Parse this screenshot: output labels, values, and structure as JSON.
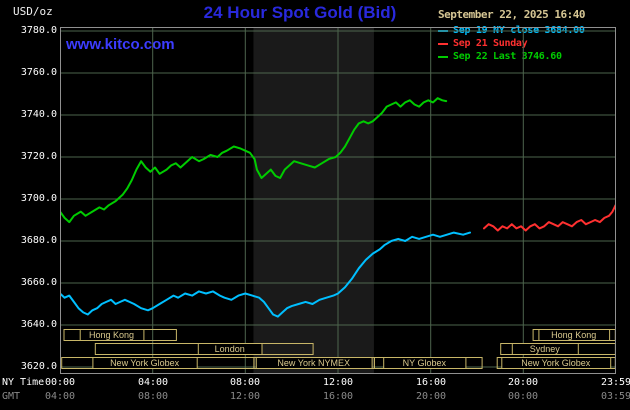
{
  "header": {
    "unit_label": "USD/oz",
    "title": "24 Hour Spot Gold (Bid)",
    "datetime": "September 22, 2025 16:40",
    "watermark": "www.kitco.com"
  },
  "legend": [
    {
      "label": "Sep 19 NY close 3684.00",
      "color": "#00bfff"
    },
    {
      "label": "Sep 21 Sunday",
      "color": "#ff3030"
    },
    {
      "label": "Sep 22 Last 3746.60",
      "color": "#00cc00"
    }
  ],
  "axes": {
    "ny_time_label": "NY Time",
    "gmt_label": "GMT",
    "ny_ticks": [
      "00:00",
      "04:00",
      "08:00",
      "12:00",
      "16:00",
      "20:00",
      "23:59"
    ],
    "gmt_ticks": [
      "04:00",
      "08:00",
      "12:00",
      "16:00",
      "20:00",
      "00:00",
      "03:59"
    ]
  },
  "style": {
    "background": "#000000",
    "grid_color": "#4d654d",
    "border_color": "#909090"
  },
  "sessions": {
    "color": "#c8b668",
    "text_color": "#d9c98e",
    "rows": [
      [
        {
          "label": "Hong Kong",
          "start": 0.15,
          "end": 5.0,
          "label_start": 0.85,
          "label_end": 3.6
        },
        {
          "label": "Hong Kong",
          "start": 20.4,
          "end": 23.95,
          "label_start": 20.65,
          "label_end": 23.7
        }
      ],
      [
        {
          "label": "London",
          "start": 1.5,
          "end": 10.9,
          "label_start": 5.95,
          "label_end": 8.7
        },
        {
          "label": "Sydney",
          "start": 19.0,
          "end": 23.95,
          "label_start": 19.5,
          "label_end": 22.35
        }
      ],
      [
        {
          "label": "New York Globex",
          "start": 0.05,
          "end": 8.35,
          "label_start": 1.4,
          "label_end": 5.9
        },
        {
          "label": "New York NYMEX",
          "start": 8.35,
          "end": 13.55,
          "label_start": 8.45,
          "label_end": 13.45
        },
        {
          "label": "NY Globex",
          "start": 13.55,
          "end": 18.2,
          "label_start": 13.95,
          "label_end": 17.5
        },
        {
          "label": "New York Globex",
          "start": 18.85,
          "end": 23.95,
          "label_start": 19.05,
          "label_end": 23.75
        }
      ]
    ]
  },
  "chart_data": {
    "type": "line",
    "title": "24 Hour Spot Gold (Bid)",
    "ylabel": "USD/oz",
    "ylim": [
      3620,
      3780
    ],
    "yticks": [
      3780,
      3760,
      3740,
      3720,
      3700,
      3680,
      3660,
      3640,
      3620
    ],
    "xlim": [
      0,
      24
    ],
    "x_unit": "hours NY time",
    "xticks": [
      0,
      4,
      8,
      12,
      16,
      20,
      24
    ],
    "xgrid": [
      4,
      8,
      12,
      16,
      20
    ],
    "shaded_region": {
      "start": 8.35,
      "end": 13.55,
      "color": "#1a1a1a"
    },
    "series": [
      {
        "name": "Sep 19 NY close 3684.00",
        "color": "#00bfff",
        "points": [
          [
            0,
            3655
          ],
          [
            0.2,
            3653
          ],
          [
            0.4,
            3654
          ],
          [
            0.6,
            3651
          ],
          [
            0.8,
            3648
          ],
          [
            1.0,
            3646
          ],
          [
            1.2,
            3645
          ],
          [
            1.4,
            3647
          ],
          [
            1.6,
            3648
          ],
          [
            1.8,
            3650
          ],
          [
            2.0,
            3651
          ],
          [
            2.2,
            3652
          ],
          [
            2.4,
            3650
          ],
          [
            2.6,
            3651
          ],
          [
            2.8,
            3652
          ],
          [
            3.0,
            3651
          ],
          [
            3.2,
            3650
          ],
          [
            3.5,
            3648
          ],
          [
            3.8,
            3647
          ],
          [
            4.0,
            3648
          ],
          [
            4.3,
            3650
          ],
          [
            4.6,
            3652
          ],
          [
            4.9,
            3654
          ],
          [
            5.1,
            3653
          ],
          [
            5.4,
            3655
          ],
          [
            5.7,
            3654
          ],
          [
            6.0,
            3656
          ],
          [
            6.3,
            3655
          ],
          [
            6.6,
            3656
          ],
          [
            6.9,
            3654
          ],
          [
            7.1,
            3653
          ],
          [
            7.4,
            3652
          ],
          [
            7.7,
            3654
          ],
          [
            8.0,
            3655
          ],
          [
            8.3,
            3654
          ],
          [
            8.6,
            3653
          ],
          [
            8.8,
            3651
          ],
          [
            9.0,
            3648
          ],
          [
            9.2,
            3645
          ],
          [
            9.4,
            3644
          ],
          [
            9.6,
            3646
          ],
          [
            9.8,
            3648
          ],
          [
            10.0,
            3649
          ],
          [
            10.3,
            3650
          ],
          [
            10.6,
            3651
          ],
          [
            10.9,
            3650
          ],
          [
            11.2,
            3652
          ],
          [
            11.5,
            3653
          ],
          [
            11.8,
            3654
          ],
          [
            12.0,
            3655
          ],
          [
            12.3,
            3658
          ],
          [
            12.6,
            3662
          ],
          [
            12.9,
            3667
          ],
          [
            13.2,
            3671
          ],
          [
            13.5,
            3674
          ],
          [
            13.8,
            3676
          ],
          [
            14.0,
            3678
          ],
          [
            14.3,
            3680
          ],
          [
            14.6,
            3681
          ],
          [
            14.9,
            3680
          ],
          [
            15.2,
            3682
          ],
          [
            15.5,
            3681
          ],
          [
            15.8,
            3682
          ],
          [
            16.1,
            3683
          ],
          [
            16.4,
            3682
          ],
          [
            16.7,
            3683
          ],
          [
            17.0,
            3684
          ],
          [
            17.4,
            3683
          ],
          [
            17.7,
            3684
          ]
        ]
      },
      {
        "name": "Sep 21 Sunday",
        "color": "#ff3030",
        "points": [
          [
            18.3,
            3686
          ],
          [
            18.5,
            3688
          ],
          [
            18.7,
            3687
          ],
          [
            18.9,
            3685
          ],
          [
            19.1,
            3687
          ],
          [
            19.3,
            3686
          ],
          [
            19.5,
            3688
          ],
          [
            19.7,
            3686
          ],
          [
            19.9,
            3687
          ],
          [
            20.1,
            3685
          ],
          [
            20.3,
            3687
          ],
          [
            20.5,
            3688
          ],
          [
            20.7,
            3686
          ],
          [
            20.9,
            3687
          ],
          [
            21.1,
            3689
          ],
          [
            21.3,
            3688
          ],
          [
            21.5,
            3687
          ],
          [
            21.7,
            3689
          ],
          [
            21.9,
            3688
          ],
          [
            22.1,
            3687
          ],
          [
            22.3,
            3689
          ],
          [
            22.5,
            3690
          ],
          [
            22.7,
            3688
          ],
          [
            22.9,
            3689
          ],
          [
            23.1,
            3690
          ],
          [
            23.3,
            3689
          ],
          [
            23.5,
            3691
          ],
          [
            23.7,
            3692
          ],
          [
            23.85,
            3694
          ],
          [
            23.98,
            3697
          ]
        ]
      },
      {
        "name": "Sep 22 Last 3746.60",
        "color": "#00cc00",
        "points": [
          [
            0,
            3694
          ],
          [
            0.2,
            3691
          ],
          [
            0.4,
            3689
          ],
          [
            0.6,
            3692
          ],
          [
            0.9,
            3694
          ],
          [
            1.1,
            3692
          ],
          [
            1.4,
            3694
          ],
          [
            1.7,
            3696
          ],
          [
            1.9,
            3695
          ],
          [
            2.1,
            3697
          ],
          [
            2.4,
            3699
          ],
          [
            2.7,
            3702
          ],
          [
            2.9,
            3705
          ],
          [
            3.1,
            3709
          ],
          [
            3.3,
            3714
          ],
          [
            3.5,
            3718
          ],
          [
            3.7,
            3715
          ],
          [
            3.9,
            3713
          ],
          [
            4.1,
            3715
          ],
          [
            4.3,
            3712
          ],
          [
            4.6,
            3714
          ],
          [
            4.8,
            3716
          ],
          [
            5.0,
            3717
          ],
          [
            5.2,
            3715
          ],
          [
            5.5,
            3718
          ],
          [
            5.7,
            3720
          ],
          [
            6.0,
            3718
          ],
          [
            6.2,
            3719
          ],
          [
            6.5,
            3721
          ],
          [
            6.8,
            3720
          ],
          [
            7.0,
            3722
          ],
          [
            7.2,
            3723
          ],
          [
            7.5,
            3725
          ],
          [
            7.8,
            3724
          ],
          [
            8.0,
            3723
          ],
          [
            8.2,
            3722
          ],
          [
            8.4,
            3719
          ],
          [
            8.5,
            3714
          ],
          [
            8.7,
            3710
          ],
          [
            8.9,
            3712
          ],
          [
            9.1,
            3714
          ],
          [
            9.3,
            3711
          ],
          [
            9.5,
            3710
          ],
          [
            9.7,
            3714
          ],
          [
            9.9,
            3716
          ],
          [
            10.1,
            3718
          ],
          [
            10.4,
            3717
          ],
          [
            10.7,
            3716
          ],
          [
            11.0,
            3715
          ],
          [
            11.3,
            3717
          ],
          [
            11.6,
            3719
          ],
          [
            11.9,
            3720
          ],
          [
            12.1,
            3722
          ],
          [
            12.3,
            3725
          ],
          [
            12.5,
            3729
          ],
          [
            12.7,
            3733
          ],
          [
            12.9,
            3736
          ],
          [
            13.1,
            3737
          ],
          [
            13.3,
            3736
          ],
          [
            13.5,
            3737
          ],
          [
            13.7,
            3739
          ],
          [
            13.9,
            3741
          ],
          [
            14.1,
            3744
          ],
          [
            14.3,
            3745
          ],
          [
            14.5,
            3746
          ],
          [
            14.7,
            3744
          ],
          [
            14.9,
            3746
          ],
          [
            15.1,
            3747
          ],
          [
            15.3,
            3745
          ],
          [
            15.5,
            3744
          ],
          [
            15.7,
            3746
          ],
          [
            15.9,
            3747
          ],
          [
            16.1,
            3746
          ],
          [
            16.3,
            3748
          ],
          [
            16.5,
            3747
          ],
          [
            16.67,
            3746.6
          ]
        ]
      }
    ]
  }
}
